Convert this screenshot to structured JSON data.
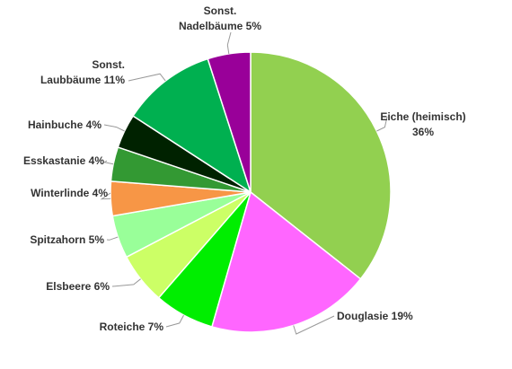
{
  "chart_data": {
    "type": "pie",
    "title": "",
    "unit": "%",
    "slices": [
      {
        "label_lines": [
          "Eiche (heimisch)",
          "36%"
        ],
        "name": "Eiche (heimisch)",
        "value": 36,
        "color": "#92d050"
      },
      {
        "label_lines": [
          "Douglasie 19%"
        ],
        "name": "Douglasie",
        "value": 19,
        "color": "#ff66ff"
      },
      {
        "label_lines": [
          "Roteiche 7%"
        ],
        "name": "Roteiche",
        "value": 7,
        "color": "#00ee00"
      },
      {
        "label_lines": [
          "Elsbeere 6%"
        ],
        "name": "Elsbeere",
        "value": 6,
        "color": "#ccff66"
      },
      {
        "label_lines": [
          "Spitzahorn 5%"
        ],
        "name": "Spitzahorn",
        "value": 5,
        "color": "#99ff99"
      },
      {
        "label_lines": [
          "Winterlinde 4%"
        ],
        "name": "Winterlinde",
        "value": 4,
        "color": "#f79646"
      },
      {
        "label_lines": [
          "Esskastanie 4%"
        ],
        "name": "Esskastanie",
        "value": 4,
        "color": "#339933"
      },
      {
        "label_lines": [
          "Hainbuche 4%"
        ],
        "name": "Hainbuche",
        "value": 4,
        "color": "#002200"
      },
      {
        "label_lines": [
          "Sonst.",
          "Laubbäume 11%"
        ],
        "name": "Sonst. Laubbäume",
        "value": 11,
        "color": "#00b050"
      },
      {
        "label_lines": [
          "Sonst.",
          "Nadelbäume 5%"
        ],
        "name": "Sonst. Nadelbäume",
        "value": 5,
        "color": "#990099"
      }
    ]
  }
}
